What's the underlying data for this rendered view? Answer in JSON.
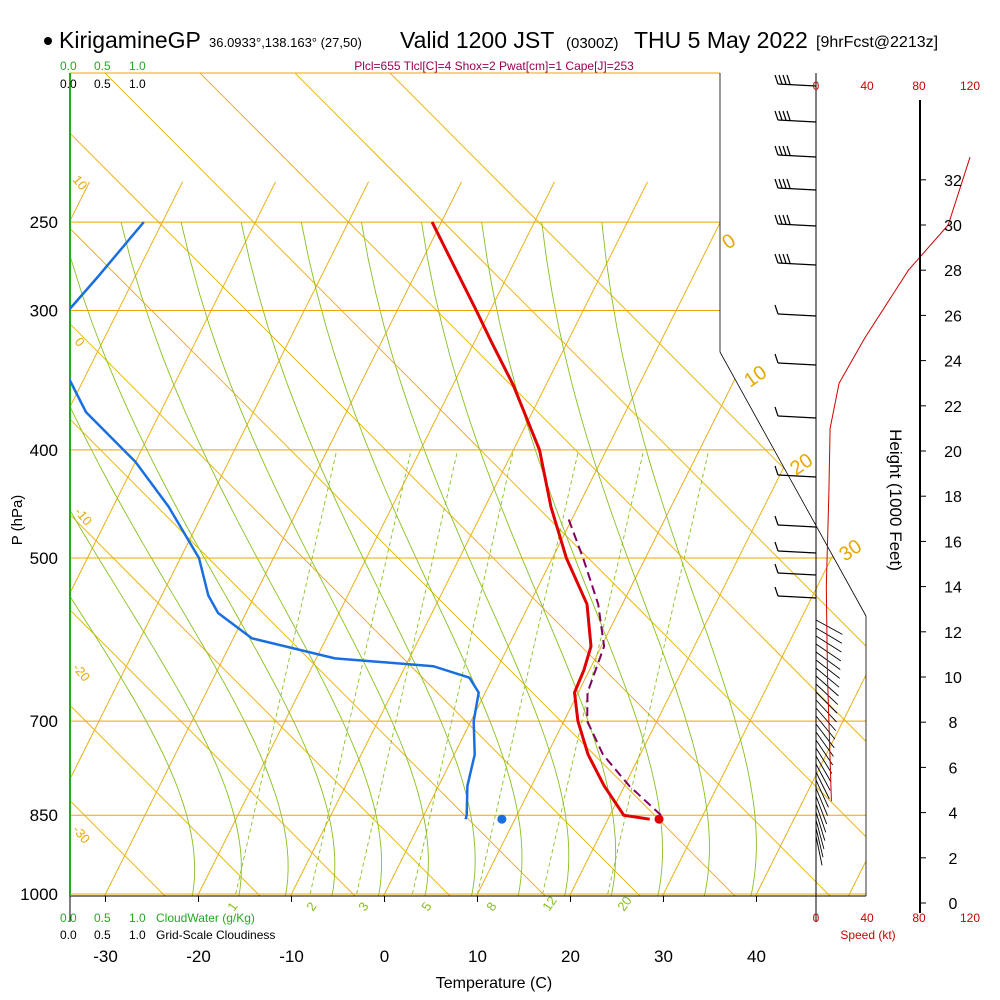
{
  "header": {
    "station": "KirigamineGP",
    "coords": "36.0933°,138.163° (27,50)",
    "valid_a": "Valid 1200 JST",
    "valid_z": "(0300Z)",
    "valid_b": "THU 5 May 2022",
    "forecast": "[9hrFcst@2213z]",
    "indices": "Plcl=655 Tlcl[C]=4 Shox=2 Pwat[cm]=1 Cape[J]=253"
  },
  "colors": {
    "temp": "#e00000",
    "dew": "#1a6fe0",
    "parcel": "#800060",
    "isotherm": "#e8a800",
    "dry_adiabat": "#e8b000",
    "moist_adiabat": "#88c020",
    "mixing_ratio": "#88c020",
    "cloud": "#22aa22",
    "speed": "#cc0000"
  },
  "chart_data": {
    "type": "skew-t",
    "xlabel": "Temperature (C)",
    "ylabel": "P (hPa)",
    "y2label": "Height (1000 Feet)",
    "pressure_ticks": [
      250,
      300,
      400,
      500,
      700,
      850,
      1000
    ],
    "temp_ticks": [
      -30,
      -20,
      -10,
      0,
      10,
      20,
      30,
      40
    ],
    "height_ticks": [
      0,
      2,
      4,
      6,
      8,
      10,
      12,
      14,
      16,
      18,
      20,
      22,
      24,
      26,
      28,
      30,
      32
    ],
    "cloud_ticks_top": [
      "0.0",
      "0.5",
      "1.0"
    ],
    "cloud_ticks_bottom": [
      "0.0",
      "0.5",
      "1.0"
    ],
    "cloud_water_label": "CloudWater (g/Kg)",
    "cloudiness_label": "Grid-Scale Cloudiness",
    "speed_ticks_top": [
      "0",
      "40",
      "80",
      "120"
    ],
    "speed_ticks_bottom": [
      "0",
      "40",
      "80",
      "120"
    ],
    "speed_label": "Speed (kt)",
    "theta_labels": [
      "10",
      "0",
      "-10",
      "-20",
      "-30",
      "0",
      "10",
      "20",
      "30"
    ],
    "mixing_labels": [
      "1",
      "2",
      "3",
      "5",
      "8",
      "12",
      "20"
    ],
    "temperature": [
      {
        "p": 857,
        "t": 24.5
      },
      {
        "p": 850,
        "t": 21.5
      },
      {
        "p": 800,
        "t": 17.8
      },
      {
        "p": 750,
        "t": 14.4
      },
      {
        "p": 700,
        "t": 11.5
      },
      {
        "p": 660,
        "t": 9.6
      },
      {
        "p": 630,
        "t": 9.4
      },
      {
        "p": 600,
        "t": 8.9
      },
      {
        "p": 550,
        "t": 6.2
      },
      {
        "p": 500,
        "t": 1.5
      },
      {
        "p": 450,
        "t": -2.9
      },
      {
        "p": 400,
        "t": -7.2
      },
      {
        "p": 350,
        "t": -13.5
      },
      {
        "p": 320,
        "t": -18.2
      },
      {
        "p": 300,
        "t": -21.5
      },
      {
        "p": 250,
        "t": -31.0
      }
    ],
    "dewpoint": [
      {
        "p": 857,
        "t": 4.7
      },
      {
        "p": 850,
        "t": 4.6
      },
      {
        "p": 800,
        "t": 3.1
      },
      {
        "p": 750,
        "t": 2.2
      },
      {
        "p": 700,
        "t": 0.3
      },
      {
        "p": 660,
        "t": -0.7
      },
      {
        "p": 640,
        "t": -2.5
      },
      {
        "p": 625,
        "t": -7.0
      },
      {
        "p": 615,
        "t": -18.0
      },
      {
        "p": 590,
        "t": -28.0
      },
      {
        "p": 560,
        "t": -33.0
      },
      {
        "p": 540,
        "t": -35.0
      },
      {
        "p": 500,
        "t": -38.0
      },
      {
        "p": 450,
        "t": -44.0
      },
      {
        "p": 410,
        "t": -50.0
      },
      {
        "p": 370,
        "t": -58.0
      },
      {
        "p": 330,
        "t": -64.0
      },
      {
        "p": 310,
        "t": -66.0
      },
      {
        "p": 280,
        "t": -64.0
      },
      {
        "p": 250,
        "t": -62.0
      }
    ],
    "parcel": [
      {
        "p": 850,
        "t": 25.5
      },
      {
        "p": 800,
        "t": 20.5
      },
      {
        "p": 750,
        "t": 16.0
      },
      {
        "p": 700,
        "t": 12.5
      },
      {
        "p": 660,
        "t": 11.0
      },
      {
        "p": 600,
        "t": 10.3
      },
      {
        "p": 550,
        "t": 7.4
      },
      {
        "p": 500,
        "t": 3.3
      },
      {
        "p": 460,
        "t": -0.5
      }
    ],
    "surface_temp": {
      "p": 857,
      "t": 25.5
    },
    "surface_dew": {
      "p": 857,
      "t": 8.6
    },
    "height_profile": [
      {
        "kft": 4.5,
        "kt": 12
      },
      {
        "kft": 10,
        "kt": 9
      },
      {
        "kft": 14,
        "kt": 8
      },
      {
        "kft": 18,
        "kt": 10
      },
      {
        "kft": 21,
        "kt": 11
      },
      {
        "kft": 23,
        "kt": 18
      },
      {
        "kft": 25,
        "kt": 38
      },
      {
        "kft": 28,
        "kt": 72
      },
      {
        "kft": 30,
        "kt": 103
      },
      {
        "kft": 33,
        "kt": 120
      }
    ]
  }
}
